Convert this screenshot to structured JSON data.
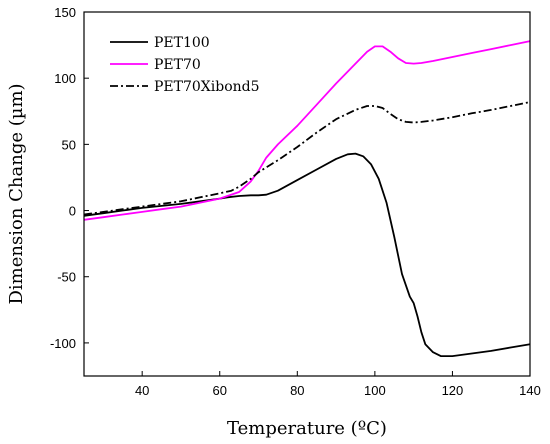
{
  "chart_data": {
    "type": "line",
    "title": "",
    "xlabel": "Temperature (ºC)",
    "ylabel": "Dimension Change (µm)",
    "xlim": [
      25,
      140
    ],
    "ylim": [
      -125,
      150
    ],
    "xticks": [
      40,
      60,
      80,
      100,
      120,
      140
    ],
    "yticks": [
      -100,
      -50,
      0,
      50,
      100,
      150
    ],
    "grid": false,
    "legend_position": "top-left",
    "series": [
      {
        "name": "PET100",
        "color": "#000000",
        "style": "solid",
        "x": [
          25,
          30,
          35,
          40,
          45,
          50,
          55,
          60,
          62,
          65,
          68,
          70,
          72,
          75,
          80,
          85,
          90,
          93,
          95,
          97,
          99,
          101,
          103,
          105,
          107,
          109,
          110,
          111,
          112,
          113,
          115,
          117,
          120,
          125,
          130,
          135,
          140
        ],
        "y": [
          -4,
          -2,
          0,
          2,
          3.5,
          5,
          7,
          9,
          10,
          11,
          11.5,
          11.5,
          12,
          15,
          23,
          31,
          39,
          42.5,
          43,
          41,
          35,
          24,
          6,
          -20,
          -48,
          -65,
          -70,
          -80,
          -92,
          -101,
          -107,
          -110,
          -110,
          -108,
          -106,
          -103.5,
          -101
        ]
      },
      {
        "name": "PET70",
        "color": "#FF00FF",
        "style": "solid",
        "x": [
          25,
          30,
          35,
          40,
          45,
          50,
          55,
          60,
          65,
          68,
          70,
          72,
          75,
          80,
          85,
          90,
          95,
          98,
          100,
          102,
          104,
          106,
          108,
          110,
          112,
          115,
          120,
          125,
          130,
          135,
          140
        ],
        "y": [
          -7,
          -5,
          -3,
          -1,
          1,
          3,
          6,
          9,
          14,
          22,
          30,
          40,
          50,
          64,
          80,
          96,
          111,
          120,
          124,
          124,
          120,
          115,
          111.5,
          111,
          111.5,
          113,
          116,
          119,
          122,
          125,
          128
        ]
      },
      {
        "name": "PET70Xibond5",
        "color": "#000000",
        "style": "dashdot",
        "x": [
          25,
          30,
          35,
          40,
          45,
          50,
          55,
          60,
          63,
          65,
          68,
          70,
          75,
          80,
          85,
          90,
          95,
          98,
          100,
          102,
          104,
          106,
          108,
          110,
          112,
          115,
          120,
          125,
          130,
          135,
          140
        ],
        "y": [
          -3,
          -1,
          1,
          3,
          5,
          7,
          10,
          13,
          15,
          18,
          24,
          29,
          38,
          48,
          59,
          69,
          76,
          79,
          79,
          77.5,
          73,
          69,
          67,
          66.5,
          67,
          68,
          70.5,
          73.5,
          76,
          79,
          82
        ]
      }
    ]
  }
}
